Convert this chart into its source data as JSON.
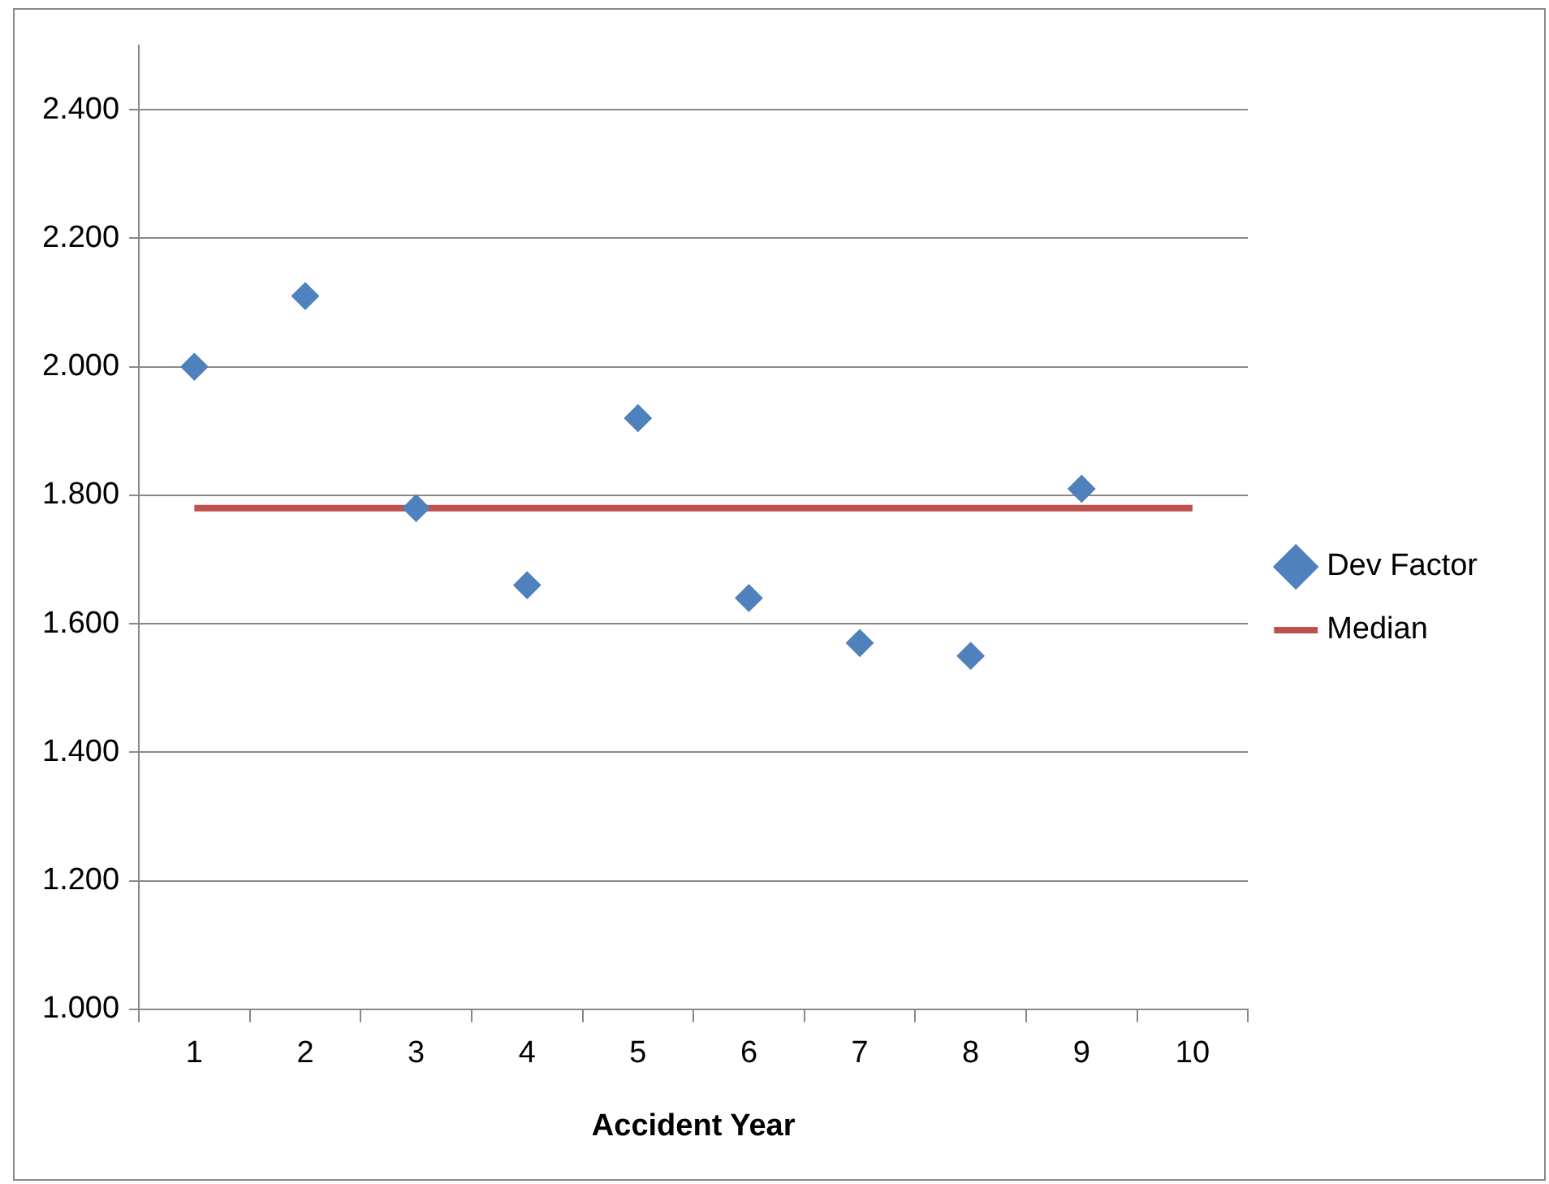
{
  "chart_data": {
    "type": "scatter",
    "xlabel": "Accident Year",
    "categories": [
      "1",
      "2",
      "3",
      "4",
      "5",
      "6",
      "7",
      "8",
      "9",
      "10"
    ],
    "series": [
      {
        "name": "Dev Factor",
        "color": "#4f81bd",
        "marker": "diamond",
        "values": [
          2.0,
          2.11,
          1.78,
          1.66,
          1.92,
          1.64,
          1.57,
          1.55,
          1.81,
          null
        ]
      },
      {
        "name": "Median",
        "type": "line",
        "color": "#c0504d",
        "marker": "none",
        "line_style": "solid",
        "values": [
          1.78,
          1.78,
          1.78,
          1.78,
          1.78,
          1.78,
          1.78,
          1.78,
          1.78,
          1.78
        ]
      }
    ],
    "ylim": [
      1.0,
      2.5
    ],
    "yticks": [
      {
        "value": 1.0,
        "label": "1.000"
      },
      {
        "value": 1.2,
        "label": "1.200"
      },
      {
        "value": 1.4,
        "label": "1.400"
      },
      {
        "value": 1.6,
        "label": "1.600"
      },
      {
        "value": 1.8,
        "label": "1.800"
      },
      {
        "value": 2.0,
        "label": "2.000"
      },
      {
        "value": 2.2,
        "label": "2.200"
      },
      {
        "value": 2.4,
        "label": "2.400"
      }
    ],
    "grid": "y",
    "legend": "right"
  }
}
